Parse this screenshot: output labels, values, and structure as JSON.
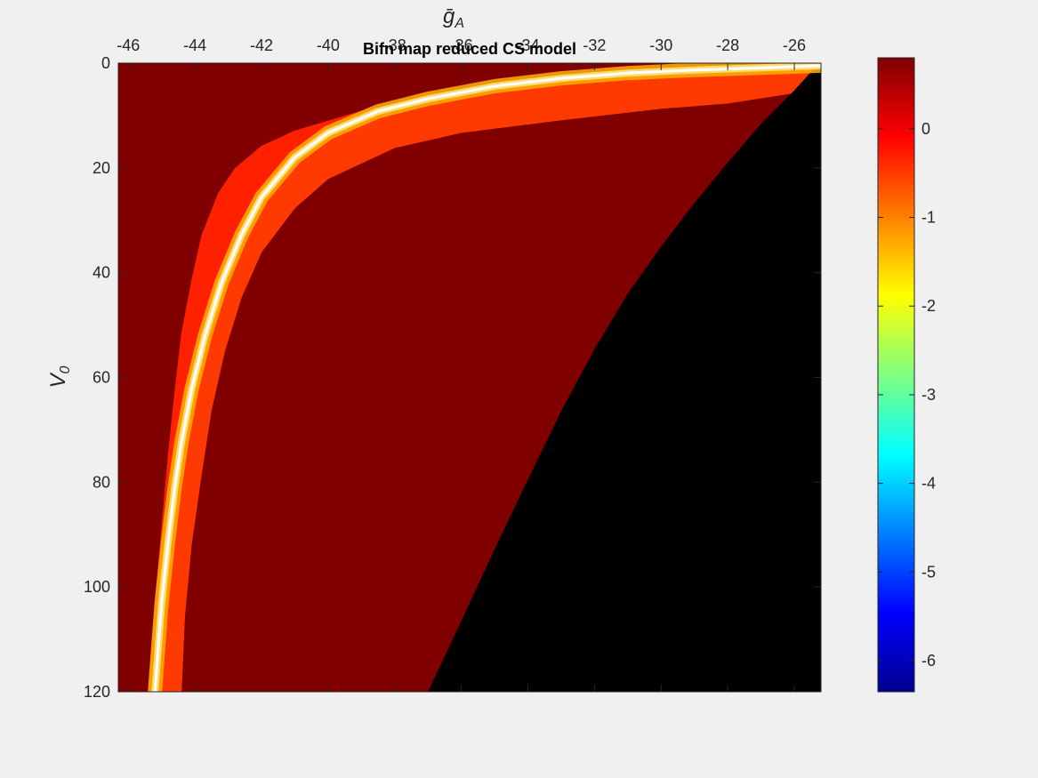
{
  "window": {
    "background": "#f0f0f0"
  },
  "chart_data": {
    "type": "heatmap",
    "title": "Bifn map reduced CS model",
    "xlabel": "ḡA",
    "xlabel_base": "ḡ",
    "xlabel_sub": "A",
    "ylabel": "V0",
    "ylabel_base": "V",
    "ylabel_sub": "0",
    "x_axis_location": "top",
    "y_axis_direction": "reverse",
    "xlim": [
      -46.3,
      -25.2
    ],
    "ylim": [
      0,
      120
    ],
    "xticks": [
      -46,
      -44,
      -42,
      -40,
      -38,
      -36,
      -34,
      -32,
      -30,
      -28,
      -26
    ],
    "xtick_labels": [
      "-46",
      "-44",
      "-42",
      "-40",
      "-38",
      "-36",
      "-34",
      "-32",
      "-30",
      "-28",
      "-26"
    ],
    "yticks": [
      0,
      20,
      40,
      60,
      80,
      100,
      120
    ],
    "ytick_labels": [
      "0",
      "20",
      "40",
      "60",
      "80",
      "100",
      "120"
    ],
    "grid": false,
    "colormap": "jet",
    "clim": [
      -6.35,
      0.8
    ],
    "colorbar": {
      "location": "right",
      "ticks": [
        0,
        -1,
        -2,
        -3,
        -4,
        -5,
        -6
      ],
      "tick_labels": [
        "0",
        "-1",
        "-2",
        "-3",
        "-4",
        "-5",
        "-6"
      ]
    },
    "regions": [
      {
        "description_value": 0.8,
        "color": "#800000"
      },
      {
        "description_value": "undefined",
        "color": "#000000"
      }
    ],
    "white_curve": {
      "color": "#ffffff",
      "points": [
        [
          -25.2,
          0.5
        ],
        [
          -27.0,
          0.9
        ],
        [
          -29.0,
          1.3
        ],
        [
          -31.0,
          1.9
        ],
        [
          -33.0,
          2.9
        ],
        [
          -35.0,
          4.4
        ],
        [
          -37.0,
          6.8
        ],
        [
          -38.5,
          9.2
        ],
        [
          -40.0,
          13.3
        ],
        [
          -41.0,
          18.0
        ],
        [
          -42.0,
          25.6
        ],
        [
          -42.6,
          32.8
        ],
        [
          -43.2,
          41.9
        ],
        [
          -43.7,
          52.1
        ],
        [
          -44.1,
          62.2
        ],
        [
          -44.4,
          72.3
        ],
        [
          -44.6,
          80.8
        ],
        [
          -44.8,
          91.0
        ],
        [
          -45.0,
          103.0
        ],
        [
          -45.2,
          120.0
        ]
      ]
    },
    "red_outer_edge": [
      [
        -25.3,
        0.2
      ],
      [
        -28.0,
        1.6
      ],
      [
        -31.0,
        2.9
      ],
      [
        -34.0,
        4.5
      ],
      [
        -37.0,
        6.8
      ],
      [
        -39.0,
        9.1
      ],
      [
        -41.0,
        12.9
      ],
      [
        -42.0,
        15.8
      ],
      [
        -42.8,
        20.1
      ],
      [
        -43.3,
        24.8
      ],
      [
        -43.8,
        32.9
      ],
      [
        -44.1,
        41.4
      ],
      [
        -44.4,
        51.4
      ],
      [
        -44.6,
        62.3
      ],
      [
        -44.8,
        74.2
      ],
      [
        -45.0,
        88.5
      ],
      [
        -45.2,
        102.8
      ],
      [
        -45.4,
        120.0
      ]
    ],
    "red_inner_edge": [
      [
        -25.3,
        0.3
      ],
      [
        -26.0,
        5.7
      ],
      [
        -28.0,
        7.7
      ],
      [
        -30.0,
        8.7
      ],
      [
        -33.0,
        10.9
      ],
      [
        -36.0,
        13.3
      ],
      [
        -38.0,
        16.2
      ],
      [
        -40.0,
        22.1
      ],
      [
        -41.0,
        27.7
      ],
      [
        -42.0,
        36.1
      ],
      [
        -42.6,
        44.8
      ],
      [
        -43.1,
        55.0
      ],
      [
        -43.5,
        66.3
      ],
      [
        -43.8,
        78.6
      ],
      [
        -44.1,
        92.0
      ],
      [
        -44.3,
        105.5
      ],
      [
        -44.4,
        120.0
      ]
    ],
    "black_boundary": [
      [
        -25.3,
        0.3
      ],
      [
        -26.0,
        5.2
      ],
      [
        -27.0,
        11.6
      ],
      [
        -28.0,
        19.0
      ],
      [
        -29.0,
        26.7
      ],
      [
        -30.0,
        35.0
      ],
      [
        -31.0,
        44.0
      ],
      [
        -32.0,
        54.6
      ],
      [
        -33.0,
        66.4
      ],
      [
        -34.0,
        79.5
      ],
      [
        -35.0,
        92.8
      ],
      [
        -36.0,
        106.5
      ],
      [
        -37.0,
        120.0
      ]
    ],
    "colors": {
      "axis": "#262626",
      "plot_background": "#800000",
      "undefined_region": "#000000"
    }
  }
}
